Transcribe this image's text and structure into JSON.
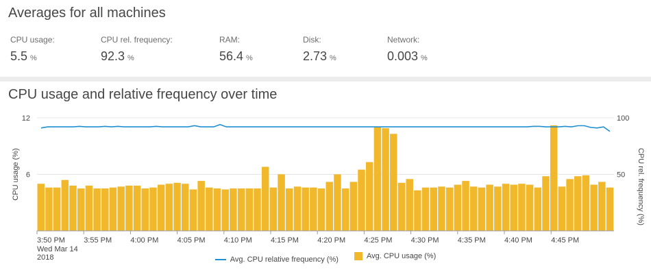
{
  "averages": {
    "title": "Averages for all machines",
    "metrics": [
      {
        "label": "CPU usage:",
        "value": "5.5",
        "unit": "%"
      },
      {
        "label": "CPU rel. frequency:",
        "value": "92.3",
        "unit": "%"
      },
      {
        "label": "RAM:",
        "value": "56.4",
        "unit": "%"
      },
      {
        "label": "Disk:",
        "value": "2.73",
        "unit": "%"
      },
      {
        "label": "Network:",
        "value": "0.003",
        "unit": "%"
      }
    ]
  },
  "chart_panel": {
    "title": "CPU usage and relative frequency over time"
  },
  "colors": {
    "bar": "#F0B82A",
    "line": "#1E8FD2",
    "grid": "#E6E6E6",
    "divider": "#ECECEC"
  },
  "chart_data": {
    "type": "bar",
    "y_left": {
      "label": "CPU usage (%)",
      "range": [
        0,
        12
      ],
      "ticks": [
        "12",
        "6"
      ]
    },
    "y_right": {
      "label": "CPU rel. frequency (%)",
      "range": [
        0,
        100
      ],
      "ticks": [
        "100",
        "50"
      ]
    },
    "x_ticks": [
      "3:50 PM",
      "3:55 PM",
      "4:00 PM",
      "4:05 PM",
      "4:10 PM",
      "4:15 PM",
      "4:20 PM",
      "4:25 PM",
      "4:30 PM",
      "4:35 PM",
      "4:40 PM",
      "4:45 PM"
    ],
    "x_first_date": [
      "Wed Mar 14",
      "2018"
    ],
    "grid": true,
    "legend": "bottom-center",
    "series": [
      {
        "name": "Avg. CPU relative frequency (%)",
        "type": "line",
        "axis": "right",
        "values": [
          91,
          92,
          92,
          92,
          92,
          92,
          92.5,
          92,
          92,
          92,
          92.5,
          92,
          92.5,
          92,
          92,
          92,
          92,
          92,
          92.5,
          92,
          92,
          92,
          92,
          92,
          93,
          92,
          92,
          92,
          94,
          92,
          92,
          92,
          92,
          92,
          92,
          92,
          92,
          92,
          92,
          92,
          92,
          92,
          92,
          92,
          92,
          92,
          92,
          92,
          92,
          92,
          92,
          92,
          92,
          92,
          92,
          92,
          92,
          92,
          92,
          92,
          92,
          92,
          92,
          92,
          92,
          92,
          92,
          92,
          92,
          92,
          92,
          92,
          92,
          92,
          92,
          92,
          92,
          92.5,
          92.5,
          92,
          92,
          92,
          92.5,
          92,
          93,
          93,
          91.5,
          91,
          92,
          88
        ]
      },
      {
        "name": "Avg. CPU usage (%)",
        "type": "bar",
        "axis": "left",
        "values": [
          5.0,
          4.6,
          4.6,
          5.4,
          4.8,
          4.5,
          4.8,
          4.5,
          4.5,
          4.6,
          4.7,
          4.8,
          4.8,
          4.5,
          4.6,
          4.9,
          5.0,
          5.1,
          5.0,
          4.4,
          5.3,
          4.6,
          4.5,
          4.4,
          4.5,
          4.5,
          4.5,
          4.5,
          6.8,
          4.6,
          6.0,
          4.5,
          4.7,
          4.6,
          4.6,
          4.5,
          5.2,
          6.0,
          4.5,
          5.2,
          6.5,
          7.3,
          11.0,
          10.9,
          10.3,
          5.1,
          5.5,
          4.3,
          4.6,
          4.6,
          4.7,
          4.6,
          4.9,
          5.3,
          4.7,
          4.6,
          4.9,
          4.7,
          5.0,
          4.9,
          5.0,
          4.9,
          4.6,
          5.8,
          11.2,
          4.7,
          5.5,
          5.8,
          5.9,
          4.9,
          5.2,
          4.6
        ]
      }
    ]
  }
}
